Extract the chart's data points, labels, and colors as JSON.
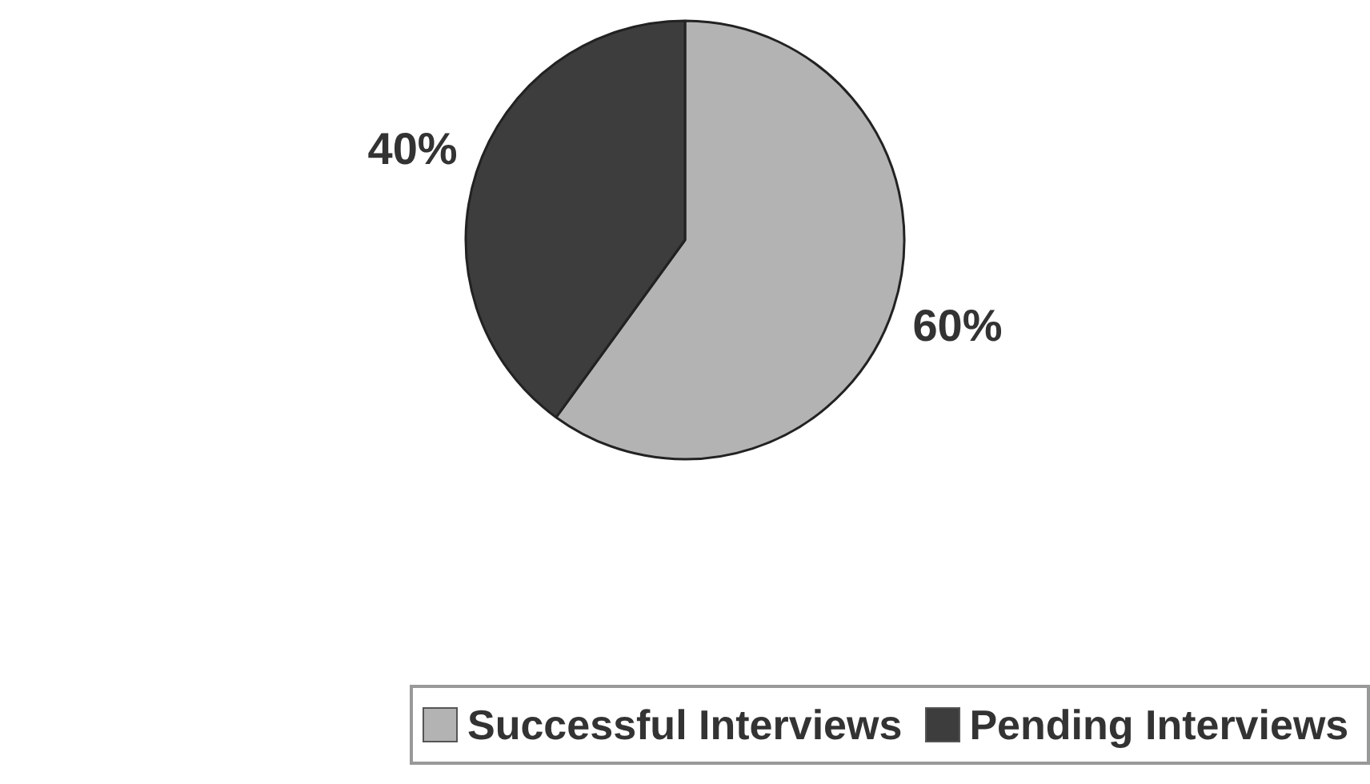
{
  "chart_data": {
    "type": "pie",
    "categories": [
      "Successful Interviews",
      "Pending Interviews"
    ],
    "values": [
      60,
      40
    ],
    "colors": [
      "#b3b3b3",
      "#3d3d3d"
    ],
    "value_labels": [
      "60%",
      "40%"
    ],
    "legend": "bottom"
  }
}
